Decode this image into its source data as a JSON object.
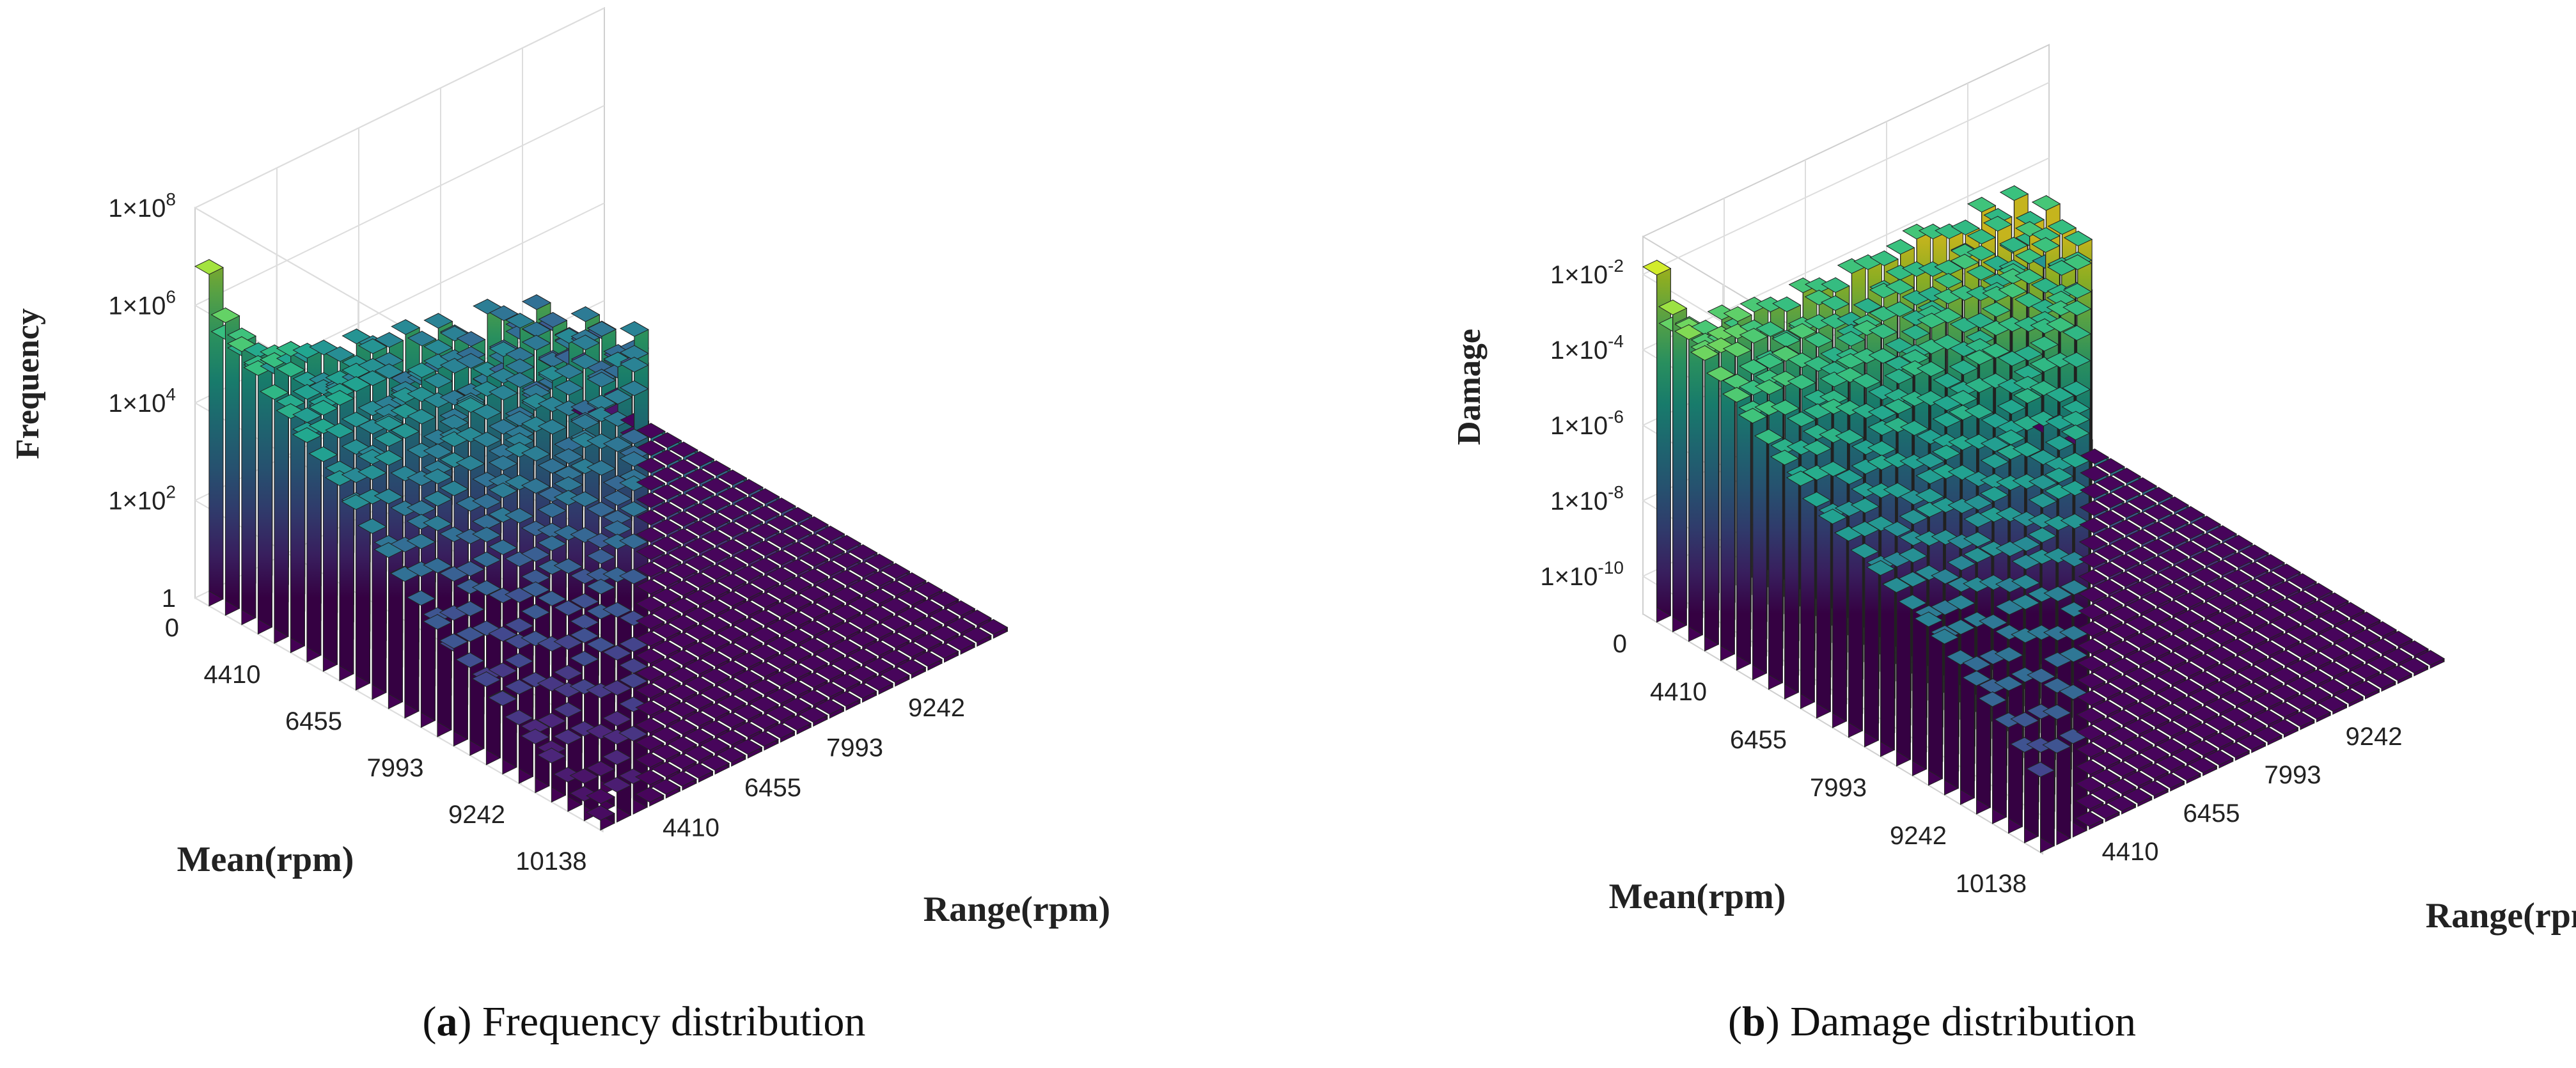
{
  "captions": [
    {
      "letter": "a",
      "text": " Frequency distribution"
    },
    {
      "letter": "b",
      "text": " Damage distribution"
    }
  ],
  "chart_data": [
    {
      "type": "bar3d",
      "zlabel": "Frequency",
      "xlabel": "Mean(rpm)",
      "ylabel": "Range(rpm)",
      "zscale": "log",
      "mean_ticks": [
        "0",
        "4410",
        "6455",
        "7993",
        "9242",
        "10138"
      ],
      "range_ticks": [
        "4410",
        "6455",
        "7993",
        "9242"
      ],
      "z_ticks": [
        {
          "base": "1×10",
          "exp": "8",
          "value": 8
        },
        {
          "base": "1×10",
          "exp": "6",
          "value": 6
        },
        {
          "base": "1×10",
          "exp": "4",
          "value": 4
        },
        {
          "base": "1×10",
          "exp": "2",
          "value": 2
        },
        {
          "base": "1",
          "exp": "",
          "value": 0
        }
      ],
      "zlim_log10": [
        0,
        8
      ],
      "grid": true,
      "mean_edge_log10": [
        6.8,
        6.0,
        5.6,
        5.3,
        5.0,
        4.8,
        4.5,
        4.3,
        4.0,
        3.7,
        3.4,
        3.1,
        2.8,
        2.5,
        2.2,
        2.0,
        1.8,
        1.6,
        1.4,
        1.2,
        1.0,
        0.8,
        0.6,
        0.4,
        0.2
      ],
      "back_edge_log10": [
        6.8,
        5.3,
        4.8,
        4.6,
        4.1,
        4.3,
        4.0,
        4.0,
        3.7,
        3.9,
        3.6,
        3.5,
        3.6,
        3.2,
        3.4,
        3.0,
        2.7,
        3.2,
        2.9,
        2.5,
        2.8,
        2.2,
        1.8,
        0,
        0
      ]
    },
    {
      "type": "bar3d",
      "zlabel": "Damage",
      "xlabel": "Mean(rpm)",
      "ylabel": "Range(rpm)",
      "zscale": "log",
      "mean_ticks": [
        "0",
        "4410",
        "6455",
        "7993",
        "9242",
        "10138"
      ],
      "range_ticks": [
        "4410",
        "6455",
        "7993",
        "9242"
      ],
      "z_ticks": [
        {
          "base": "1×10",
          "exp": "-2",
          "value": -2
        },
        {
          "base": "1×10",
          "exp": "-4",
          "value": -4
        },
        {
          "base": "1×10",
          "exp": "-6",
          "value": -6
        },
        {
          "base": "1×10",
          "exp": "-8",
          "value": -8
        },
        {
          "base": "1×10",
          "exp": "-10",
          "value": -10
        }
      ],
      "zlim_log10": [
        -11,
        -1
      ],
      "grid": true,
      "mean_edge_log10": [
        -1.8,
        -2.6,
        -3.0,
        -3.3,
        -3.6,
        -3.9,
        -4.2,
        -4.5,
        -4.8,
        -5.1,
        -5.4,
        -5.6,
        -5.8,
        -6.0,
        -6.2,
        -6.4,
        -6.6,
        -6.8,
        -7.0,
        -7.3,
        -7.6,
        -7.9,
        -8.2,
        -8.6,
        -9.0
      ],
      "back_edge_log10": [
        -1.8,
        -3.5,
        -3.7,
        -4.0,
        -3.8,
        -4.3,
        -4.0,
        -4.2,
        -4.4,
        -4.1,
        -4.3,
        -4.5,
        -4.2,
        -4.3,
        -4.4,
        -4.3,
        -4.1,
        -4.3,
        -4.5,
        -4.6,
        -4.2,
        -4.7,
        -4.3,
        -6.2,
        -11
      ]
    }
  ]
}
